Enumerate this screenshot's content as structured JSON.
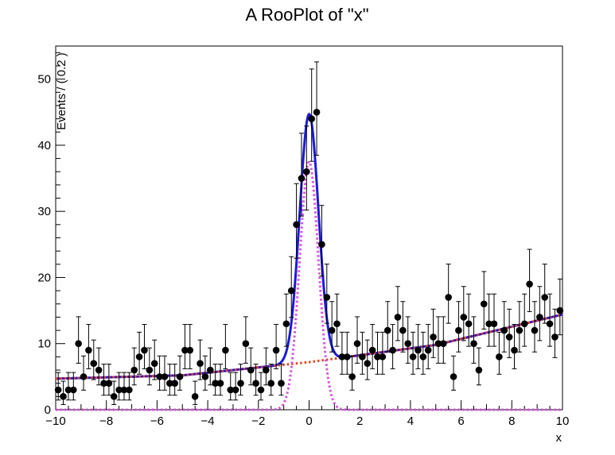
{
  "chart_data": {
    "type": "scatter",
    "title": "A RooPlot of \"x\"",
    "xlabel": "x",
    "ylabel": "Events / ( 0.2 )",
    "xlim": [
      -10,
      10
    ],
    "ylim": [
      0,
      55
    ],
    "xticks": [
      "−10",
      "−8",
      "−6",
      "−4",
      "−2",
      "0",
      "2",
      "4",
      "6",
      "8",
      "10"
    ],
    "yticks": [
      "0",
      "10",
      "20",
      "30",
      "40",
      "50"
    ],
    "grid": false,
    "legend": "none",
    "bin_width": 0.2,
    "series": [
      {
        "kind": "data_points",
        "color": "#000000",
        "x": [
          -9.9,
          -9.7,
          -9.5,
          -9.3,
          -9.1,
          -8.9,
          -8.7,
          -8.5,
          -8.3,
          -8.1,
          -7.9,
          -7.7,
          -7.5,
          -7.3,
          -7.1,
          -6.9,
          -6.7,
          -6.5,
          -6.3,
          -6.1,
          -5.9,
          -5.7,
          -5.5,
          -5.3,
          -5.1,
          -4.9,
          -4.7,
          -4.5,
          -4.3,
          -4.1,
          -3.9,
          -3.7,
          -3.5,
          -3.3,
          -3.1,
          -2.9,
          -2.7,
          -2.5,
          -2.3,
          -2.1,
          -1.9,
          -1.7,
          -1.5,
          -1.3,
          -1.1,
          -0.9,
          -0.7,
          -0.5,
          -0.3,
          -0.1,
          0.1,
          0.3,
          0.5,
          0.7,
          0.9,
          1.1,
          1.3,
          1.5,
          1.7,
          1.9,
          2.1,
          2.3,
          2.5,
          2.7,
          2.9,
          3.1,
          3.3,
          3.5,
          3.7,
          3.9,
          4.1,
          4.3,
          4.5,
          4.7,
          4.9,
          5.1,
          5.3,
          5.5,
          5.7,
          5.9,
          6.1,
          6.3,
          6.5,
          6.7,
          6.9,
          7.1,
          7.3,
          7.5,
          7.7,
          7.9,
          8.1,
          8.3,
          8.5,
          8.7,
          8.9,
          9.1,
          9.3,
          9.5,
          9.7,
          9.9
        ],
        "y": [
          3,
          2,
          3,
          3,
          10,
          5,
          9,
          7,
          6,
          4,
          4,
          2,
          3,
          3,
          3,
          6,
          8,
          9,
          6,
          7,
          5,
          5,
          4,
          4,
          5,
          9,
          9,
          2,
          7,
          5,
          6,
          4,
          4,
          9,
          3,
          3,
          4,
          10,
          6,
          4,
          3,
          6,
          4,
          9,
          4,
          13,
          18,
          28,
          35,
          36,
          44,
          45,
          25,
          17,
          12,
          13,
          8,
          8,
          5,
          10,
          8,
          7,
          9,
          8,
          8,
          12,
          9,
          14,
          12,
          10,
          8,
          9,
          8,
          9,
          11,
          10,
          10,
          17,
          5,
          12,
          14,
          13,
          10,
          6,
          16,
          13,
          13,
          8,
          12,
          11,
          9,
          12,
          13,
          19,
          12,
          14,
          17,
          13,
          11,
          15
        ]
      },
      {
        "kind": "total_pdf",
        "color": "#1a1adc",
        "style": "solid",
        "description": "background + signal"
      },
      {
        "kind": "background_pdf",
        "color": "#e8421c",
        "style": "dotted",
        "y_at": {
          "-10": 4.7,
          "-5": 5.2,
          "0": 7.2,
          "5": 9.8,
          "10": 14.4
        }
      },
      {
        "kind": "signal_pdf",
        "color": "#d94fe0",
        "style": "dotted",
        "mean": 0.0,
        "sigma": 0.37,
        "peak": 37.5
      }
    ]
  }
}
